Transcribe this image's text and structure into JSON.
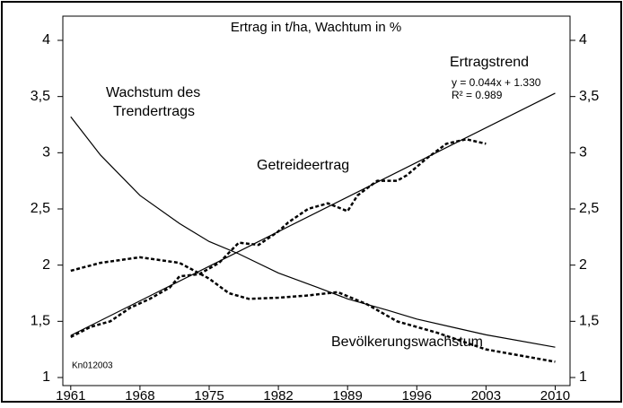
{
  "chart_data": {
    "type": "line",
    "title": "Ertrag in t/ha, Wachtum in %",
    "xlim": [
      1960.2,
      2011.5
    ],
    "xticks": [
      1961,
      1968,
      1975,
      1982,
      1989,
      1996,
      2003,
      2010
    ],
    "ylim": [
      1,
      4
    ],
    "yticks": [
      1,
      {
        "value": 1.5,
        "label": "1,5"
      },
      2,
      {
        "value": 2.5,
        "label": "2,5"
      },
      3,
      {
        "value": 3.5,
        "label": "3,5"
      },
      4
    ],
    "y2lim": [
      1,
      4
    ],
    "y2ticks": [
      1,
      {
        "value": 1.5,
        "label": "1,5"
      },
      2,
      {
        "value": 2.5,
        "label": "2,5"
      },
      3,
      {
        "value": 3.5,
        "label": "3,5"
      },
      4
    ],
    "series": [
      {
        "name": "Ertragstrend",
        "color": "#000000",
        "dash": "solid",
        "x": [
          1961,
          2010
        ],
        "values": [
          1.374,
          3.53
        ]
      },
      {
        "name": "Wachstum des Trendertrags",
        "color": "#000000",
        "dash": "solid",
        "x": [
          1961,
          1964,
          1968,
          1972,
          1975,
          1978,
          1982,
          1986,
          1989,
          1993,
          1996,
          2000,
          2003,
          2010
        ],
        "values": [
          3.32,
          2.98,
          2.62,
          2.37,
          2.21,
          2.1,
          1.93,
          1.8,
          1.7,
          1.6,
          1.52,
          1.44,
          1.38,
          1.27
        ]
      },
      {
        "name": "Getreideertrag",
        "color": "#000000",
        "dash": "dotted",
        "x": [
          1961,
          1963,
          1965,
          1967,
          1969,
          1971,
          1972,
          1974,
          1976,
          1978,
          1980,
          1982,
          1983,
          1985,
          1987,
          1989,
          1990,
          1992,
          1994,
          1995,
          1997,
          1999,
          2001,
          2003
        ],
        "values": [
          1.36,
          1.45,
          1.5,
          1.62,
          1.7,
          1.8,
          1.9,
          1.92,
          2.02,
          2.2,
          2.18,
          2.3,
          2.38,
          2.5,
          2.55,
          2.48,
          2.62,
          2.75,
          2.75,
          2.8,
          2.95,
          3.08,
          3.12,
          3.08
        ]
      },
      {
        "name": "Bevölkerungswachstum",
        "color": "#000000",
        "dash": "dotted",
        "x": [
          1961,
          1964,
          1968,
          1972,
          1975,
          1977,
          1979,
          1982,
          1985,
          1988,
          1991,
          1994,
          1998,
          2003,
          2010
        ],
        "values": [
          1.95,
          2.02,
          2.07,
          2.02,
          1.88,
          1.75,
          1.7,
          1.71,
          1.73,
          1.76,
          1.65,
          1.5,
          1.4,
          1.25,
          1.14
        ]
      }
    ],
    "annotations": [
      "Ertragstrend",
      "y = 0.044x + 1.330",
      "R² = 0.989",
      "Wachstum des",
      "Trendertrags",
      "Getreideertrag",
      "Bevölkerungswachstum",
      "Kn012003"
    ]
  }
}
